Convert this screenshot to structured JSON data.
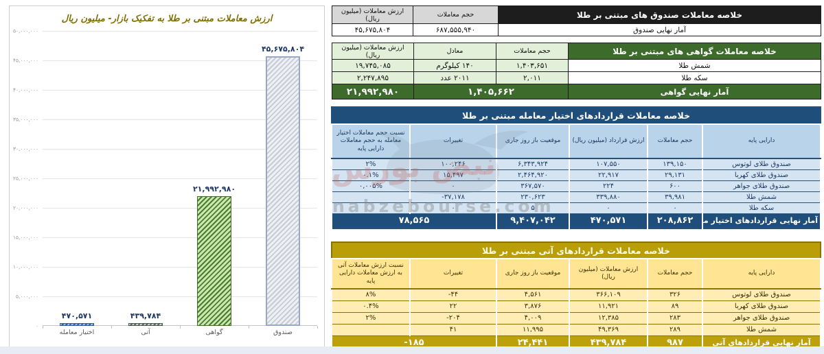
{
  "watermark": {
    "site": "nabzebourse.com",
    "brand": "نبض بورس"
  },
  "chart_data": {
    "type": "bar",
    "title": "ارزش معاملات مبتنی بر طلا به تفکیک بازار- میلیون ریال",
    "categories": [
      "اختیار معامله",
      "آتی",
      "گواهی",
      "صندوق"
    ],
    "values": [
      470571,
      439784,
      21992980,
      45675804
    ],
    "value_labels": [
      "۴۷۰,۵۷۱",
      "۴۳۹,۷۸۴",
      "۲۱,۹۹۲,۹۸۰",
      "۴۵,۶۷۵,۸۰۴"
    ],
    "bar_styles": [
      "style-blue",
      "style-dark",
      "style-green",
      "style-gray"
    ],
    "xlabel": "",
    "ylabel": "",
    "ylim": [
      0,
      50000000
    ],
    "ytick_step": 5000000,
    "ytick_labels": [
      "۰",
      "۵,۰۰۰,۰۰۰",
      "۱۰,۰۰۰,۰۰۰",
      "۱۵,۰۰۰,۰۰۰",
      "۲۰,۰۰۰,۰۰۰",
      "۲۵,۰۰۰,۰۰۰",
      "۳۰,۰۰۰,۰۰۰",
      "۳۵,۰۰۰,۰۰۰",
      "۴۰,۰۰۰,۰۰۰",
      "۴۵,۰۰۰,۰۰۰",
      "۵۰,۰۰۰,۰۰۰"
    ],
    "grid": true,
    "legend": false
  },
  "tables": {
    "funds": {
      "title": "خلاصه معاملات صندوق های مبتنی بر طلا",
      "col_volume": "حجم معاملات",
      "col_value": "ارزش معاملات (میلیون ریال)",
      "rows": [
        {
          "name": "funds-total-row",
          "cls": "data-row",
          "cells": [
            {
              "t": "آمار نهایی صندوق",
              "cls": "label",
              "name": "row-label"
            },
            {
              "t": "۶۸۷,۵۵۵,۹۴۰",
              "cls": "num",
              "name": "volume-value"
            },
            {
              "t": "۴۵,۶۷۵,۸۰۴",
              "cls": "num",
              "name": "value-value"
            }
          ]
        }
      ]
    },
    "certificates": {
      "title": "خلاصه معاملات گواهی های مبتنی بر طلا",
      "col_volume": "حجم معاملات",
      "col_equiv": "معادل",
      "col_value": "ارزش معاملات (میلیون ریال)",
      "rows": [
        {
          "name": "gold-bullion-row",
          "cls": "data-row",
          "cells": [
            {
              "t": "شمش طلا",
              "cls": "label",
              "name": "row-label"
            },
            {
              "t": "۱,۴۰۳,۶۵۱",
              "cls": "num tint"
            },
            {
              "t": "۱۴۰ کیلوگرم",
              "cls": "tint"
            },
            {
              "t": "۱۹,۷۴۵,۰۸۵",
              "cls": "num tint"
            }
          ]
        },
        {
          "name": "gold-coin-row",
          "cls": "data-row",
          "cells": [
            {
              "t": "سکه طلا",
              "cls": "label",
              "name": "row-label"
            },
            {
              "t": "۲,۰۱۱",
              "cls": "num tint"
            },
            {
              "t": "۲۰۱۱ عدد",
              "cls": "tint"
            },
            {
              "t": "۲,۲۴۷,۸۹۵",
              "cls": "num tint"
            }
          ]
        },
        {
          "name": "certificates-total-row",
          "cls": "footer",
          "cells": [
            {
              "t": "آمار نهایی گواهی",
              "cls": "flabel",
              "name": "row-label"
            },
            {
              "t": "۱,۴۰۵,۶۶۲",
              "span": 2,
              "cls": "fnum"
            },
            {
              "t": "۲۱,۹۹۲,۹۸۰",
              "cls": "fnum"
            }
          ]
        }
      ]
    },
    "options": {
      "title": "خلاصه معاملات قراردادهای اختیار معامله مبتنی بر طلا",
      "columns": [
        "دارایی پایه",
        "حجم معاملات",
        "ارزش قرارداد (میلیون ریال)",
        "موقعیت باز روز جاری",
        "تغییرات",
        "نسبت حجم معاملات اختیار معامله به حجم معاملات دارایی پایه"
      ],
      "rows": [
        {
          "name": "lotus-gold-fund-row",
          "cls": "data-row",
          "cells": [
            {
              "t": "صندوق طلای لوتوس",
              "cls": "label",
              "name": "row-label"
            },
            {
              "t": "۱۳۹,۱۵۰",
              "cls": "num"
            },
            {
              "t": "۱۰۷,۵۵۰",
              "cls": "num"
            },
            {
              "t": "۶,۳۴۳,۹۲۴",
              "cls": "num"
            },
            {
              "t": "۱۰۰,۲۴۶",
              "cls": "num"
            },
            {
              "t": "۲%",
              "cls": "num"
            }
          ]
        },
        {
          "name": "kahroba-gold-fund-row",
          "cls": "data-row",
          "cells": [
            {
              "t": "صندوق طلای کهربا",
              "cls": "label",
              "name": "row-label"
            },
            {
              "t": "۲۹,۱۳۱",
              "cls": "num"
            },
            {
              "t": "۲۲,۹۱۷",
              "cls": "num"
            },
            {
              "t": "۲,۴۶۴,۹۲۰",
              "cls": "num"
            },
            {
              "t": "۱۵,۴۹۷",
              "cls": "num"
            },
            {
              "t": "۰.۱%",
              "cls": "num"
            }
          ]
        },
        {
          "name": "javaher-gold-fund-row",
          "cls": "data-row",
          "cells": [
            {
              "t": "صندوق طلای جواهر",
              "cls": "label",
              "name": "row-label"
            },
            {
              "t": "۶۰۰",
              "cls": "num"
            },
            {
              "t": "۲۲۴",
              "cls": "num"
            },
            {
              "t": "۳۶۷,۵۷۰",
              "cls": "num"
            },
            {
              "t": "۰",
              "cls": "num"
            },
            {
              "t": "۰,۰۰۵%",
              "cls": "num"
            }
          ]
        },
        {
          "name": "gold-bullion-row",
          "cls": "data-row",
          "cells": [
            {
              "t": "شمش طلا",
              "cls": "label",
              "name": "row-label"
            },
            {
              "t": "۳۹,۹۸۱",
              "cls": "num"
            },
            {
              "t": "۳۳۹,۸۸۰",
              "cls": "num"
            },
            {
              "t": "۲۳۰,۶۲۳",
              "cls": "num"
            },
            {
              "t": "-۳۷,۱۷۸",
              "cls": "num"
            },
            {
              "t": "",
              "cls": "num"
            }
          ]
        },
        {
          "name": "gold-coin-row",
          "cls": "data-row",
          "cells": [
            {
              "t": "سکه طلا",
              "cls": "label",
              "name": "row-label"
            },
            {
              "t": "۰",
              "cls": "num"
            },
            {
              "t": "۰",
              "cls": "num"
            },
            {
              "t": "۵",
              "cls": "num"
            },
            {
              "t": "۰",
              "cls": "num"
            },
            {
              "t": "",
              "cls": "num"
            }
          ]
        },
        {
          "name": "options-total-row",
          "cls": "footer",
          "cells": [
            {
              "t": "آمار نهایی قراردادهای اختیار معامله",
              "cls": "flabel",
              "name": "row-label"
            },
            {
              "t": "۲۰۸,۸۶۲",
              "cls": "fnum"
            },
            {
              "t": "۴۷۰,۵۷۱",
              "cls": "fnum"
            },
            {
              "t": "۹,۴۰۷,۰۴۲",
              "cls": "fnum"
            },
            {
              "t": "۷۸,۵۶۵",
              "span": 2,
              "cls": "fnum"
            }
          ]
        }
      ]
    },
    "futures": {
      "title": "خلاصه معاملات قراردادهای آتی مبتنی بر طلا",
      "columns": [
        "دارایی پایه",
        "حجم معاملات",
        "ارزش معاملات (میلیون ریال)",
        "موقعیت باز روز جاری",
        "تغییرات",
        "نسبت ارزش معاملات آتی به ارزش معاملات دارایی پایه"
      ],
      "rows": [
        {
          "name": "lotus-gold-fund-row",
          "cls": "data-row",
          "cells": [
            {
              "t": "صندوق طلای لوتوس",
              "cls": "label",
              "name": "row-label"
            },
            {
              "t": "۳۲۶",
              "cls": "num"
            },
            {
              "t": "۳۶۶,۱۰۹",
              "cls": "num"
            },
            {
              "t": "۴,۵۶۱",
              "cls": "num"
            },
            {
              "t": "-۴۴",
              "cls": "num"
            },
            {
              "t": "۸%",
              "cls": "num"
            }
          ]
        },
        {
          "name": "kahroba-gold-fund-row",
          "cls": "data-row",
          "cells": [
            {
              "t": "صندوق طلای کهربا",
              "cls": "label",
              "name": "row-label"
            },
            {
              "t": "۸۹",
              "cls": "num"
            },
            {
              "t": "۱۱,۹۲۱",
              "cls": "num"
            },
            {
              "t": "۳,۸۷۶",
              "cls": "num"
            },
            {
              "t": "۲۲",
              "cls": "num"
            },
            {
              "t": "۰.۴%",
              "cls": "num"
            }
          ]
        },
        {
          "name": "javaher-gold-fund-row",
          "cls": "data-row",
          "cells": [
            {
              "t": "صندوق طلای جواهر",
              "cls": "label",
              "name": "row-label"
            },
            {
              "t": "۲۸۳",
              "cls": "num"
            },
            {
              "t": "۱۲,۳۸۵",
              "cls": "num"
            },
            {
              "t": "۴,۰۰۹",
              "cls": "num"
            },
            {
              "t": "-۲۰۴",
              "cls": "num"
            },
            {
              "t": "۲%",
              "cls": "num"
            }
          ]
        },
        {
          "name": "gold-bullion-row",
          "cls": "data-row",
          "cells": [
            {
              "t": "شمش طلا",
              "cls": "label",
              "name": "row-label"
            },
            {
              "t": "۲۸۹",
              "cls": "num"
            },
            {
              "t": "۴۹,۳۶۹",
              "cls": "num"
            },
            {
              "t": "۱۱,۹۹۵",
              "cls": "num"
            },
            {
              "t": "۴۱",
              "cls": "num"
            },
            {
              "t": "",
              "cls": "num"
            }
          ]
        },
        {
          "name": "futures-total-row",
          "cls": "footer",
          "cells": [
            {
              "t": "آمار نهایی قراردادهای آتی",
              "cls": "flabel",
              "name": "row-label"
            },
            {
              "t": "۹۸۷",
              "cls": "fnum"
            },
            {
              "t": "۴۳۹,۷۸۴",
              "cls": "fnum"
            },
            {
              "t": "۲۴,۴۴۱",
              "cls": "fnum"
            },
            {
              "t": "-۱۸۵",
              "span": 2,
              "cls": "fnum"
            }
          ]
        }
      ]
    }
  }
}
